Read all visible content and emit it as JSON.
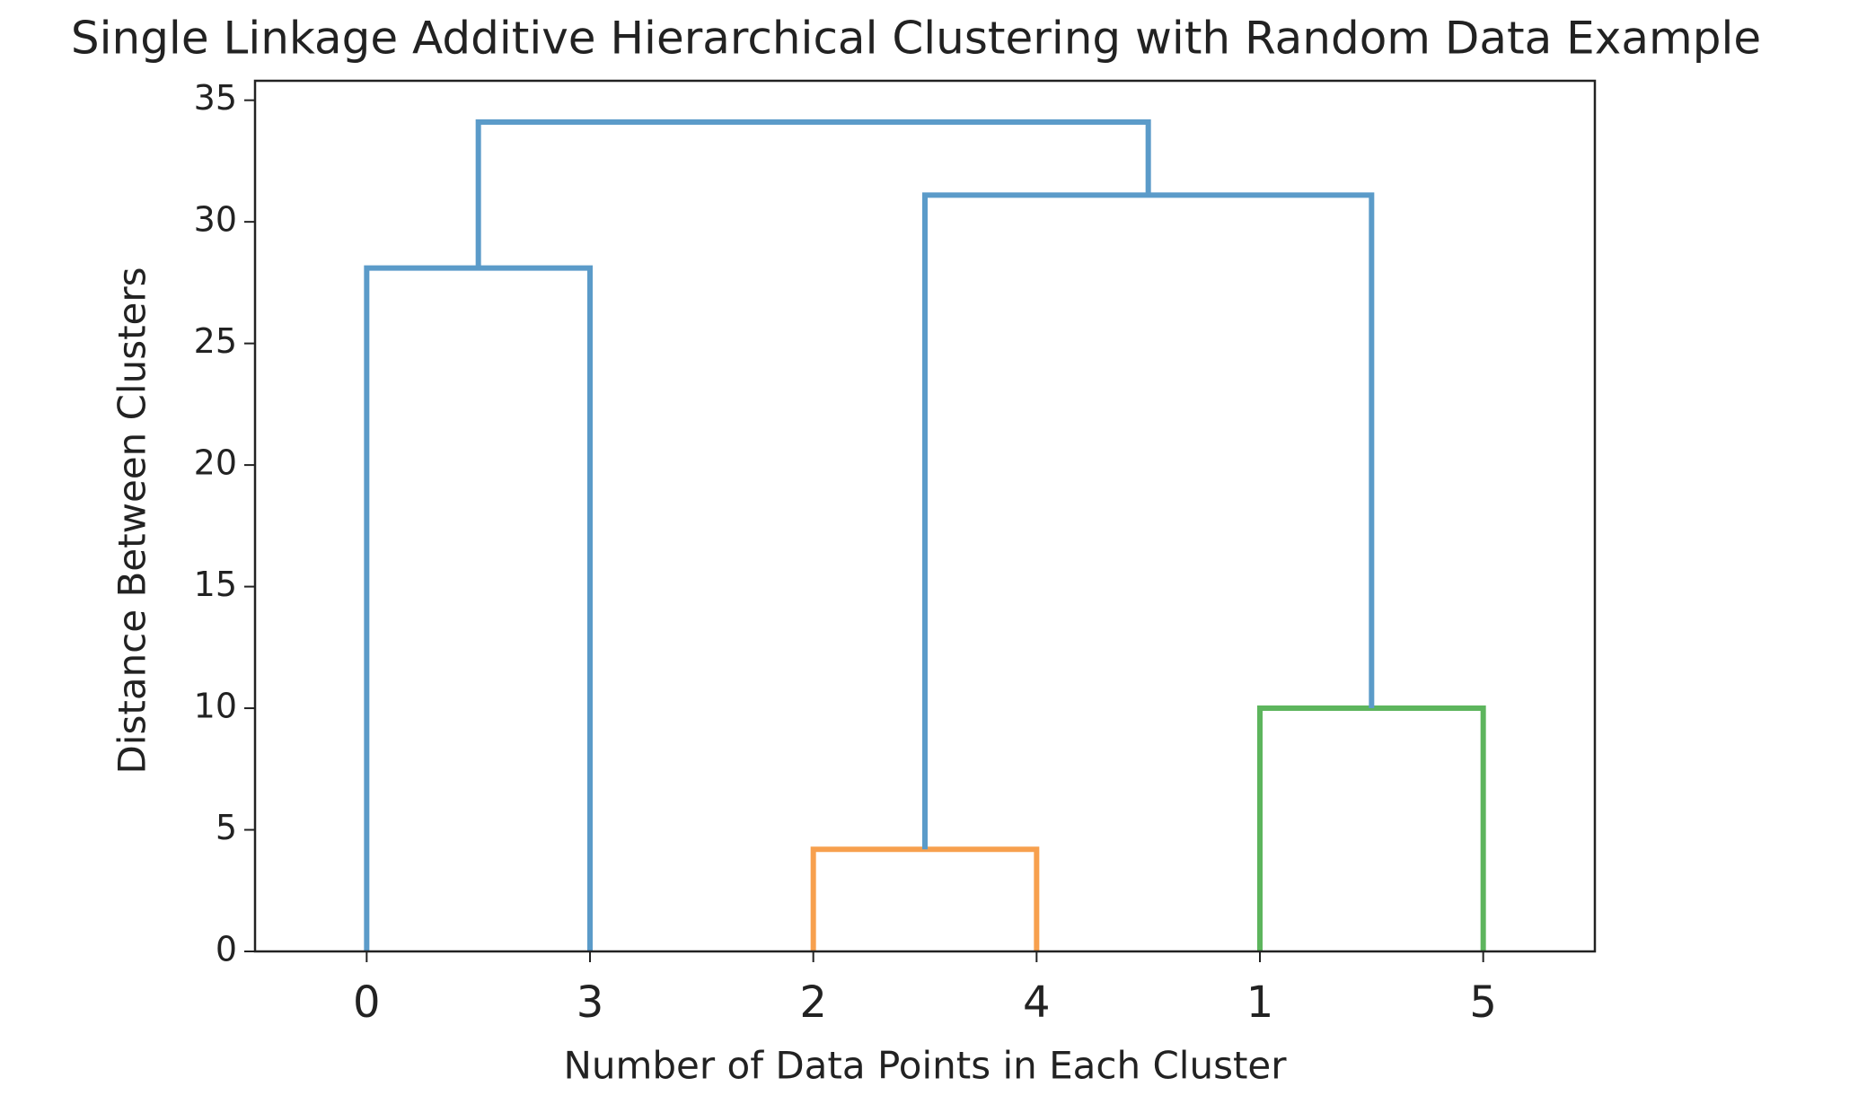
{
  "chart_data": {
    "type": "dendrogram",
    "title": "Single Linkage Additive Hierarchical Clustering with Random Data Example",
    "x_label": "Number of Data Points in Each Cluster",
    "y_label": "Distance Between Clusters",
    "categories": [
      "0",
      "3",
      "2",
      "4",
      "1",
      "5"
    ],
    "merges": [
      {
        "children": [
          0,
          1
        ],
        "height": 28.1,
        "color": "#5b9bc9"
      },
      {
        "children": [
          2,
          3
        ],
        "height": 4.2,
        "color": "#f7a04e"
      },
      {
        "children": [
          4,
          5
        ],
        "height": 10,
        "color": "#5db55d"
      },
      {
        "children": [
          7,
          8
        ],
        "height": 31.1,
        "color": "#5b9bc9"
      },
      {
        "children": [
          6,
          9
        ],
        "height": 34.1,
        "color": "#5b9bc9"
      }
    ],
    "ylim": [
      0,
      35.8
    ],
    "yticks": [
      0,
      5,
      10,
      15,
      20,
      25,
      30,
      35
    ]
  }
}
